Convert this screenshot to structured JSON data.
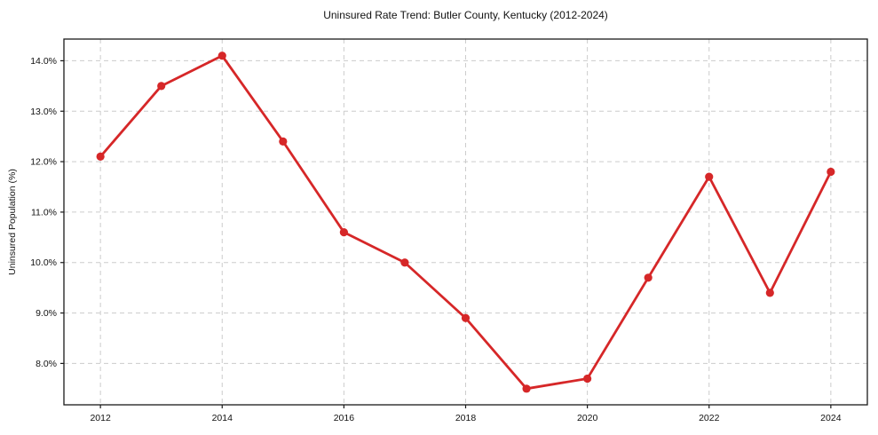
{
  "chart_data": {
    "type": "line",
    "title": "Uninsured Rate Trend: Butler County, Kentucky (2012-2024)",
    "xlabel": "",
    "ylabel": "Uninsured Population (%)",
    "x": [
      2012,
      2013,
      2014,
      2015,
      2016,
      2017,
      2018,
      2019,
      2020,
      2021,
      2022,
      2023,
      2024
    ],
    "values": [
      12.1,
      13.5,
      14.1,
      12.4,
      10.6,
      10.0,
      8.9,
      7.5,
      7.7,
      9.7,
      11.7,
      9.4,
      11.8
    ],
    "xlim": [
      2011.4,
      2024.6
    ],
    "ylim": [
      7.18,
      14.43
    ],
    "x_ticks": [
      2012,
      2014,
      2016,
      2018,
      2020,
      2022,
      2024
    ],
    "x_tick_labels": [
      "2012",
      "2014",
      "2016",
      "2018",
      "2020",
      "2022",
      "2024"
    ],
    "y_ticks": [
      8,
      9,
      10,
      11,
      12,
      13,
      14
    ],
    "y_tick_labels": [
      "8.0%",
      "9.0%",
      "10.0%",
      "11.0%",
      "12.0%",
      "13.0%",
      "14.0%"
    ],
    "grid": "on",
    "grid_style": "dashed",
    "legend_position": "none",
    "line_color": "#d62728",
    "marker": "circle",
    "marker_color": "#d62728",
    "grid_color": "#cccccc",
    "spine_color": "#1a1a1a",
    "background_color": "#ffffff"
  }
}
